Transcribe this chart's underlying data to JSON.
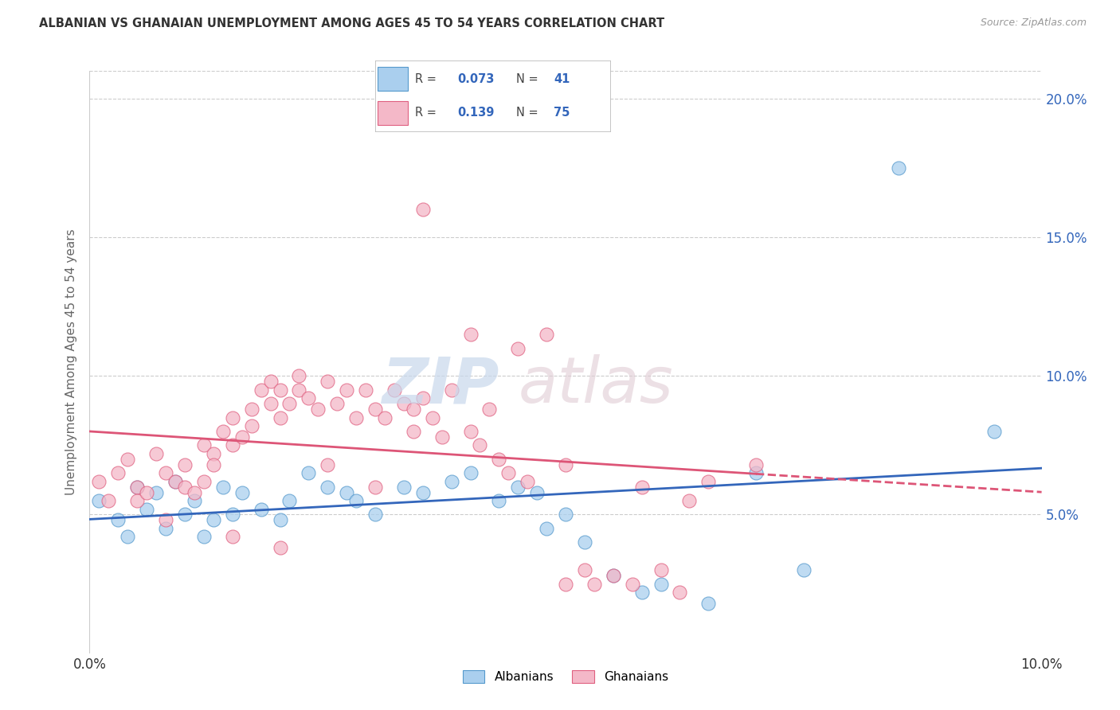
{
  "title": "ALBANIAN VS GHANAIAN UNEMPLOYMENT AMONG AGES 45 TO 54 YEARS CORRELATION CHART",
  "source": "Source: ZipAtlas.com",
  "ylabel": "Unemployment Among Ages 45 to 54 years",
  "xmin": 0.0,
  "xmax": 0.1,
  "ymin": 0.0,
  "ymax": 0.21,
  "yticks": [
    0.05,
    0.1,
    0.15,
    0.2
  ],
  "ytick_labels": [
    "5.0%",
    "10.0%",
    "15.0%",
    "20.0%"
  ],
  "albanians_R": "0.073",
  "albanians_N": "41",
  "ghanaians_R": "0.139",
  "ghanaians_N": "75",
  "albanian_color": "#aacfee",
  "ghanaian_color": "#f4b8c8",
  "albanian_edge_color": "#5599cc",
  "ghanaian_edge_color": "#e06080",
  "albanian_line_color": "#3366bb",
  "ghanaian_line_color": "#dd5577",
  "background_color": "#ffffff",
  "albanians_x": [
    0.001,
    0.003,
    0.004,
    0.005,
    0.006,
    0.007,
    0.008,
    0.009,
    0.01,
    0.011,
    0.012,
    0.013,
    0.014,
    0.015,
    0.016,
    0.018,
    0.02,
    0.021,
    0.023,
    0.025,
    0.027,
    0.028,
    0.03,
    0.033,
    0.035,
    0.038,
    0.04,
    0.043,
    0.045,
    0.047,
    0.048,
    0.05,
    0.052,
    0.055,
    0.058,
    0.06,
    0.065,
    0.07,
    0.075,
    0.085,
    0.095
  ],
  "albanians_y": [
    0.055,
    0.048,
    0.042,
    0.06,
    0.052,
    0.058,
    0.045,
    0.062,
    0.05,
    0.055,
    0.042,
    0.048,
    0.06,
    0.05,
    0.058,
    0.052,
    0.048,
    0.055,
    0.065,
    0.06,
    0.058,
    0.055,
    0.05,
    0.06,
    0.058,
    0.062,
    0.065,
    0.055,
    0.06,
    0.058,
    0.045,
    0.05,
    0.04,
    0.028,
    0.022,
    0.025,
    0.018,
    0.065,
    0.03,
    0.175,
    0.08
  ],
  "ghanaians_x": [
    0.001,
    0.002,
    0.003,
    0.004,
    0.005,
    0.005,
    0.006,
    0.007,
    0.008,
    0.008,
    0.009,
    0.01,
    0.01,
    0.011,
    0.012,
    0.012,
    0.013,
    0.013,
    0.014,
    0.015,
    0.015,
    0.016,
    0.017,
    0.017,
    0.018,
    0.019,
    0.019,
    0.02,
    0.02,
    0.021,
    0.022,
    0.022,
    0.023,
    0.024,
    0.025,
    0.026,
    0.027,
    0.028,
    0.029,
    0.03,
    0.031,
    0.032,
    0.033,
    0.034,
    0.034,
    0.035,
    0.036,
    0.037,
    0.038,
    0.04,
    0.041,
    0.042,
    0.043,
    0.044,
    0.045,
    0.046,
    0.048,
    0.05,
    0.052,
    0.053,
    0.055,
    0.057,
    0.058,
    0.06,
    0.062,
    0.063,
    0.065,
    0.035,
    0.025,
    0.04,
    0.03,
    0.02,
    0.015,
    0.07,
    0.05
  ],
  "ghanaians_y": [
    0.062,
    0.055,
    0.065,
    0.07,
    0.06,
    0.055,
    0.058,
    0.072,
    0.048,
    0.065,
    0.062,
    0.06,
    0.068,
    0.058,
    0.075,
    0.062,
    0.072,
    0.068,
    0.08,
    0.075,
    0.085,
    0.078,
    0.088,
    0.082,
    0.095,
    0.09,
    0.098,
    0.085,
    0.095,
    0.09,
    0.095,
    0.1,
    0.092,
    0.088,
    0.098,
    0.09,
    0.095,
    0.085,
    0.095,
    0.088,
    0.085,
    0.095,
    0.09,
    0.08,
    0.088,
    0.092,
    0.085,
    0.078,
    0.095,
    0.08,
    0.075,
    0.088,
    0.07,
    0.065,
    0.11,
    0.062,
    0.115,
    0.068,
    0.03,
    0.025,
    0.028,
    0.025,
    0.06,
    0.03,
    0.022,
    0.055,
    0.062,
    0.16,
    0.068,
    0.115,
    0.06,
    0.038,
    0.042,
    0.068,
    0.025
  ]
}
